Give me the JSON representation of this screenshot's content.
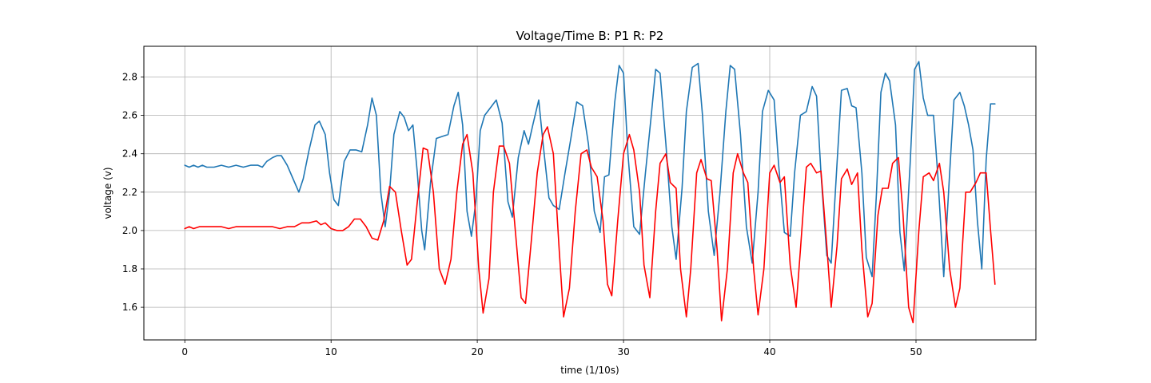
{
  "chart_data": {
    "type": "line",
    "title": "Voltage/Time  B: P1  R: P2",
    "xlabel": "time (1/10s)",
    "ylabel": "voltage (v)",
    "xlim": [
      -2.8,
      58.2
    ],
    "ylim": [
      1.43,
      2.96
    ],
    "xticks": [
      0,
      10,
      20,
      30,
      40,
      50
    ],
    "yticks": [
      1.6,
      1.8,
      2.0,
      2.2,
      2.4,
      2.6,
      2.8
    ],
    "ytick_labels": [
      "1.6",
      "1.8",
      "2.0",
      "2.2",
      "2.4",
      "2.6",
      "2.8"
    ],
    "grid": true,
    "series": [
      {
        "name": "P1",
        "color": "#1f77b4",
        "points": [
          [
            0,
            2.34
          ],
          [
            0.3,
            2.33
          ],
          [
            0.6,
            2.34
          ],
          [
            0.9,
            2.33
          ],
          [
            1.2,
            2.34
          ],
          [
            1.5,
            2.33
          ],
          [
            2,
            2.33
          ],
          [
            2.5,
            2.34
          ],
          [
            3,
            2.33
          ],
          [
            3.5,
            2.34
          ],
          [
            4,
            2.33
          ],
          [
            4.5,
            2.34
          ],
          [
            5,
            2.34
          ],
          [
            5.3,
            2.33
          ],
          [
            5.6,
            2.36
          ],
          [
            6,
            2.38
          ],
          [
            6.3,
            2.39
          ],
          [
            6.6,
            2.39
          ],
          [
            7,
            2.34
          ],
          [
            7.4,
            2.27
          ],
          [
            7.8,
            2.2
          ],
          [
            8.1,
            2.27
          ],
          [
            8.5,
            2.42
          ],
          [
            8.9,
            2.55
          ],
          [
            9.2,
            2.57
          ],
          [
            9.6,
            2.5
          ],
          [
            9.9,
            2.3
          ],
          [
            10.2,
            2.16
          ],
          [
            10.5,
            2.13
          ],
          [
            10.9,
            2.36
          ],
          [
            11.3,
            2.42
          ],
          [
            11.7,
            2.42
          ],
          [
            12.1,
            2.41
          ],
          [
            12.5,
            2.55
          ],
          [
            12.8,
            2.69
          ],
          [
            13.1,
            2.6
          ],
          [
            13.4,
            2.2
          ],
          [
            13.7,
            2.02
          ],
          [
            14,
            2.2
          ],
          [
            14.3,
            2.5
          ],
          [
            14.7,
            2.62
          ],
          [
            15,
            2.59
          ],
          [
            15.3,
            2.52
          ],
          [
            15.6,
            2.55
          ],
          [
            15.9,
            2.3
          ],
          [
            16.2,
            2.0
          ],
          [
            16.4,
            1.9
          ],
          [
            16.8,
            2.25
          ],
          [
            17.2,
            2.48
          ],
          [
            17.6,
            2.49
          ],
          [
            18,
            2.5
          ],
          [
            18.4,
            2.65
          ],
          [
            18.7,
            2.72
          ],
          [
            19,
            2.55
          ],
          [
            19.3,
            2.1
          ],
          [
            19.6,
            1.97
          ],
          [
            19.9,
            2.15
          ],
          [
            20.2,
            2.52
          ],
          [
            20.5,
            2.6
          ],
          [
            20.9,
            2.64
          ],
          [
            21.3,
            2.68
          ],
          [
            21.7,
            2.56
          ],
          [
            22.1,
            2.15
          ],
          [
            22.4,
            2.07
          ],
          [
            22.8,
            2.38
          ],
          [
            23.2,
            2.52
          ],
          [
            23.5,
            2.45
          ],
          [
            23.8,
            2.55
          ],
          [
            24.2,
            2.68
          ],
          [
            24.5,
            2.45
          ],
          [
            24.9,
            2.17
          ],
          [
            25.2,
            2.13
          ],
          [
            25.6,
            2.11
          ],
          [
            26,
            2.3
          ],
          [
            26.4,
            2.48
          ],
          [
            26.8,
            2.67
          ],
          [
            27.2,
            2.65
          ],
          [
            27.6,
            2.45
          ],
          [
            28,
            2.1
          ],
          [
            28.4,
            1.99
          ],
          [
            28.7,
            2.28
          ],
          [
            29,
            2.29
          ],
          [
            29.4,
            2.67
          ],
          [
            29.7,
            2.86
          ],
          [
            30,
            2.82
          ],
          [
            30.3,
            2.4
          ],
          [
            30.7,
            2.02
          ],
          [
            31.1,
            1.98
          ],
          [
            31.5,
            2.3
          ],
          [
            31.9,
            2.6
          ],
          [
            32.2,
            2.84
          ],
          [
            32.5,
            2.82
          ],
          [
            32.9,
            2.45
          ],
          [
            33.3,
            2.02
          ],
          [
            33.6,
            1.85
          ],
          [
            34,
            2.22
          ],
          [
            34.3,
            2.62
          ],
          [
            34.7,
            2.85
          ],
          [
            35.1,
            2.87
          ],
          [
            35.4,
            2.6
          ],
          [
            35.8,
            2.1
          ],
          [
            36.2,
            1.87
          ],
          [
            36.6,
            2.2
          ],
          [
            37,
            2.62
          ],
          [
            37.3,
            2.86
          ],
          [
            37.6,
            2.84
          ],
          [
            38,
            2.5
          ],
          [
            38.4,
            2.02
          ],
          [
            38.8,
            1.83
          ],
          [
            39.2,
            2.2
          ],
          [
            39.5,
            2.62
          ],
          [
            39.9,
            2.73
          ],
          [
            40.3,
            2.68
          ],
          [
            40.6,
            2.35
          ],
          [
            41,
            1.99
          ],
          [
            41.4,
            1.97
          ],
          [
            41.7,
            2.3
          ],
          [
            42.1,
            2.6
          ],
          [
            42.5,
            2.62
          ],
          [
            42.9,
            2.75
          ],
          [
            43.2,
            2.7
          ],
          [
            43.5,
            2.3
          ],
          [
            43.9,
            1.87
          ],
          [
            44.2,
            1.83
          ],
          [
            44.6,
            2.35
          ],
          [
            44.9,
            2.73
          ],
          [
            45.3,
            2.74
          ],
          [
            45.6,
            2.65
          ],
          [
            45.9,
            2.64
          ],
          [
            46.3,
            2.3
          ],
          [
            46.6,
            1.86
          ],
          [
            47,
            1.76
          ],
          [
            47.3,
            2.2
          ],
          [
            47.6,
            2.72
          ],
          [
            47.9,
            2.82
          ],
          [
            48.2,
            2.78
          ],
          [
            48.6,
            2.55
          ],
          [
            48.9,
            1.99
          ],
          [
            49.2,
            1.79
          ],
          [
            49.6,
            2.35
          ],
          [
            49.9,
            2.84
          ],
          [
            50.2,
            2.88
          ],
          [
            50.5,
            2.69
          ],
          [
            50.8,
            2.6
          ],
          [
            51.2,
            2.6
          ],
          [
            51.5,
            2.28
          ],
          [
            51.9,
            1.76
          ],
          [
            52.3,
            2.3
          ],
          [
            52.6,
            2.68
          ],
          [
            53,
            2.72
          ],
          [
            53.3,
            2.65
          ],
          [
            53.6,
            2.55
          ],
          [
            53.9,
            2.42
          ],
          [
            54.2,
            2.05
          ],
          [
            54.5,
            1.8
          ],
          [
            54.8,
            2.37
          ],
          [
            55.1,
            2.66
          ],
          [
            55.4,
            2.66
          ]
        ]
      },
      {
        "name": "P2",
        "color": "#ff0000",
        "points": [
          [
            0,
            2.01
          ],
          [
            0.3,
            2.02
          ],
          [
            0.6,
            2.01
          ],
          [
            1,
            2.02
          ],
          [
            1.5,
            2.02
          ],
          [
            2,
            2.02
          ],
          [
            2.5,
            2.02
          ],
          [
            3,
            2.01
          ],
          [
            3.5,
            2.02
          ],
          [
            4,
            2.02
          ],
          [
            4.5,
            2.02
          ],
          [
            5,
            2.02
          ],
          [
            5.5,
            2.02
          ],
          [
            6,
            2.02
          ],
          [
            6.5,
            2.01
          ],
          [
            7,
            2.02
          ],
          [
            7.5,
            2.02
          ],
          [
            8,
            2.04
          ],
          [
            8.5,
            2.04
          ],
          [
            9,
            2.05
          ],
          [
            9.3,
            2.03
          ],
          [
            9.6,
            2.04
          ],
          [
            10,
            2.01
          ],
          [
            10.4,
            2.0
          ],
          [
            10.8,
            2.0
          ],
          [
            11.2,
            2.02
          ],
          [
            11.6,
            2.06
          ],
          [
            12,
            2.06
          ],
          [
            12.4,
            2.02
          ],
          [
            12.8,
            1.96
          ],
          [
            13.2,
            1.95
          ],
          [
            13.6,
            2.05
          ],
          [
            14,
            2.23
          ],
          [
            14.4,
            2.2
          ],
          [
            14.8,
            2.0
          ],
          [
            15.2,
            1.82
          ],
          [
            15.5,
            1.85
          ],
          [
            15.9,
            2.15
          ],
          [
            16.3,
            2.43
          ],
          [
            16.6,
            2.42
          ],
          [
            17,
            2.2
          ],
          [
            17.4,
            1.8
          ],
          [
            17.8,
            1.72
          ],
          [
            18.2,
            1.85
          ],
          [
            18.6,
            2.2
          ],
          [
            19,
            2.45
          ],
          [
            19.3,
            2.5
          ],
          [
            19.7,
            2.3
          ],
          [
            20.1,
            1.8
          ],
          [
            20.4,
            1.57
          ],
          [
            20.8,
            1.75
          ],
          [
            21.1,
            2.2
          ],
          [
            21.5,
            2.44
          ],
          [
            21.8,
            2.44
          ],
          [
            22.2,
            2.35
          ],
          [
            22.6,
            2.0
          ],
          [
            23,
            1.65
          ],
          [
            23.3,
            1.62
          ],
          [
            23.7,
            1.95
          ],
          [
            24.1,
            2.3
          ],
          [
            24.5,
            2.5
          ],
          [
            24.8,
            2.54
          ],
          [
            25.2,
            2.4
          ],
          [
            25.6,
            1.9
          ],
          [
            25.9,
            1.55
          ],
          [
            26.3,
            1.7
          ],
          [
            26.7,
            2.1
          ],
          [
            27.1,
            2.4
          ],
          [
            27.5,
            2.42
          ],
          [
            27.8,
            2.33
          ],
          [
            28.2,
            2.28
          ],
          [
            28.6,
            2.05
          ],
          [
            28.9,
            1.72
          ],
          [
            29.2,
            1.66
          ],
          [
            29.6,
            2.05
          ],
          [
            30,
            2.4
          ],
          [
            30.4,
            2.5
          ],
          [
            30.7,
            2.42
          ],
          [
            31.1,
            2.2
          ],
          [
            31.4,
            1.82
          ],
          [
            31.8,
            1.65
          ],
          [
            32.2,
            2.1
          ],
          [
            32.5,
            2.35
          ],
          [
            32.9,
            2.4
          ],
          [
            33.2,
            2.25
          ],
          [
            33.6,
            2.22
          ],
          [
            33.9,
            1.8
          ],
          [
            34.3,
            1.55
          ],
          [
            34.6,
            1.8
          ],
          [
            35,
            2.3
          ],
          [
            35.3,
            2.37
          ],
          [
            35.7,
            2.27
          ],
          [
            36,
            2.26
          ],
          [
            36.4,
            1.9
          ],
          [
            36.7,
            1.53
          ],
          [
            37.1,
            1.8
          ],
          [
            37.5,
            2.3
          ],
          [
            37.8,
            2.4
          ],
          [
            38.2,
            2.3
          ],
          [
            38.5,
            2.25
          ],
          [
            38.9,
            1.8
          ],
          [
            39.2,
            1.56
          ],
          [
            39.6,
            1.8
          ],
          [
            40,
            2.3
          ],
          [
            40.3,
            2.34
          ],
          [
            40.7,
            2.25
          ],
          [
            41,
            2.28
          ],
          [
            41.4,
            1.82
          ],
          [
            41.8,
            1.6
          ],
          [
            42.1,
            1.9
          ],
          [
            42.5,
            2.33
          ],
          [
            42.8,
            2.35
          ],
          [
            43.2,
            2.3
          ],
          [
            43.5,
            2.31
          ],
          [
            43.9,
            1.92
          ],
          [
            44.2,
            1.6
          ],
          [
            44.6,
            1.92
          ],
          [
            44.9,
            2.27
          ],
          [
            45.3,
            2.32
          ],
          [
            45.6,
            2.24
          ],
          [
            46,
            2.3
          ],
          [
            46.3,
            1.9
          ],
          [
            46.7,
            1.55
          ],
          [
            47,
            1.62
          ],
          [
            47.4,
            2.08
          ],
          [
            47.7,
            2.22
          ],
          [
            48.1,
            2.22
          ],
          [
            48.4,
            2.35
          ],
          [
            48.8,
            2.38
          ],
          [
            49.1,
            2.1
          ],
          [
            49.5,
            1.6
          ],
          [
            49.8,
            1.52
          ],
          [
            50.2,
            2.0
          ],
          [
            50.5,
            2.28
          ],
          [
            50.9,
            2.3
          ],
          [
            51.2,
            2.26
          ],
          [
            51.6,
            2.35
          ],
          [
            51.9,
            2.2
          ],
          [
            52.3,
            1.8
          ],
          [
            52.7,
            1.6
          ],
          [
            53,
            1.7
          ],
          [
            53.4,
            2.2
          ],
          [
            53.7,
            2.2
          ],
          [
            54.1,
            2.25
          ],
          [
            54.4,
            2.3
          ],
          [
            54.8,
            2.3
          ],
          [
            55.1,
            2.0
          ],
          [
            55.4,
            1.72
          ]
        ]
      }
    ]
  }
}
